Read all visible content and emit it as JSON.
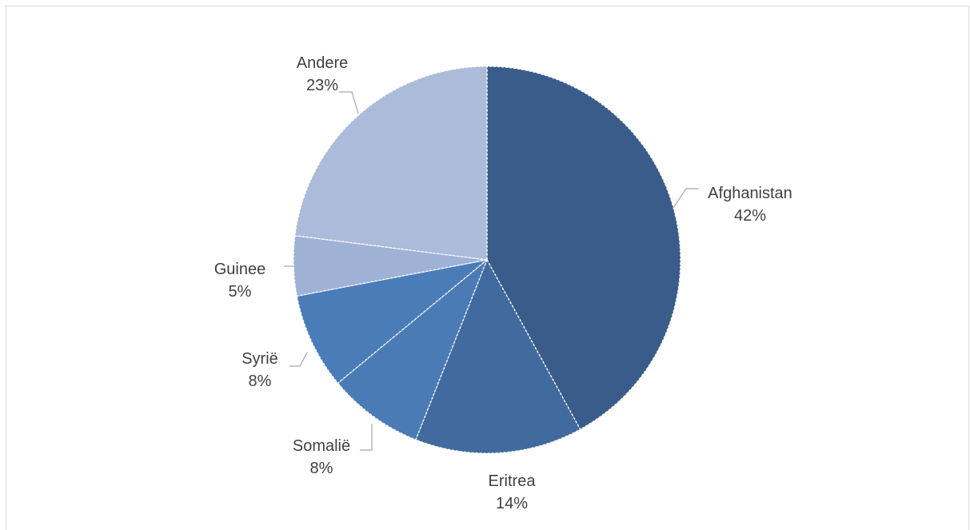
{
  "chart_data": {
    "type": "pie",
    "title": "",
    "start_angle_deg": 0,
    "direction": "clockwise",
    "legend": "none",
    "slices": [
      {
        "name": "Afghanistan",
        "value": 42,
        "label": "42%",
        "color": "#3a5c8a"
      },
      {
        "name": "Eritrea",
        "value": 14,
        "label": "14%",
        "color": "#416b9e"
      },
      {
        "name": "Somalië",
        "value": 8,
        "label": "8%",
        "color": "#4a7bb5"
      },
      {
        "name": "Syrië",
        "value": 8,
        "label": "8%",
        "color": "#4a7cb8"
      },
      {
        "name": "Guinee",
        "value": 5,
        "label": "5%",
        "color": "#9fb2d6"
      },
      {
        "name": "Andere",
        "value": 23,
        "label": "23%",
        "color": "#abbbd9"
      }
    ]
  }
}
